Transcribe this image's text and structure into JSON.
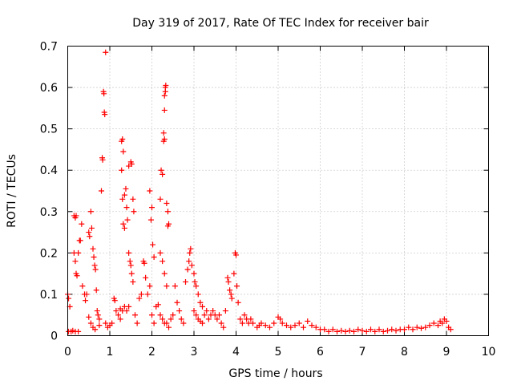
{
  "chart_data": {
    "type": "scatter",
    "title": "Day 319 of 2017, Rate Of TEC Index for receiver bair",
    "xlabel": "GPS time / hours",
    "ylabel": "ROTI / TECUs",
    "xlim": [
      0,
      10
    ],
    "ylim": [
      0,
      0.7
    ],
    "x_ticks": [
      "0",
      "1",
      "2",
      "3",
      "4",
      "5",
      "6",
      "7",
      "8",
      "9",
      "10"
    ],
    "y_ticks": [
      "0",
      "0.1",
      "0.2",
      "0.3",
      "0.4",
      "0.5",
      "0.6",
      "0.7"
    ],
    "grid": true,
    "marker": "+",
    "color": "#ff0000",
    "series": [
      {
        "points": [
          [
            0.0,
            0.1
          ],
          [
            0.02,
            0.09
          ],
          [
            0.05,
            0.07
          ],
          [
            0.02,
            0.01
          ],
          [
            0.08,
            0.01
          ],
          [
            0.12,
            0.012
          ],
          [
            0.18,
            0.01
          ],
          [
            0.25,
            0.01
          ],
          [
            0.15,
            0.29
          ],
          [
            0.18,
            0.285
          ],
          [
            0.2,
            0.29
          ],
          [
            0.15,
            0.2
          ],
          [
            0.18,
            0.18
          ],
          [
            0.2,
            0.15
          ],
          [
            0.22,
            0.145
          ],
          [
            0.25,
            0.2
          ],
          [
            0.28,
            0.23
          ],
          [
            0.3,
            0.23
          ],
          [
            0.33,
            0.27
          ],
          [
            0.35,
            0.12
          ],
          [
            0.4,
            0.1
          ],
          [
            0.45,
            0.1
          ],
          [
            0.42,
            0.085
          ],
          [
            0.5,
            0.25
          ],
          [
            0.52,
            0.24
          ],
          [
            0.55,
            0.3
          ],
          [
            0.57,
            0.26
          ],
          [
            0.6,
            0.21
          ],
          [
            0.62,
            0.19
          ],
          [
            0.64,
            0.17
          ],
          [
            0.66,
            0.16
          ],
          [
            0.68,
            0.11
          ],
          [
            0.7,
            0.06
          ],
          [
            0.72,
            0.05
          ],
          [
            0.75,
            0.04
          ],
          [
            0.5,
            0.045
          ],
          [
            0.55,
            0.03
          ],
          [
            0.6,
            0.02
          ],
          [
            0.65,
            0.015
          ],
          [
            0.75,
            0.025
          ],
          [
            0.8,
            0.35
          ],
          [
            0.82,
            0.43
          ],
          [
            0.83,
            0.425
          ],
          [
            0.85,
            0.59
          ],
          [
            0.86,
            0.585
          ],
          [
            0.87,
            0.54
          ],
          [
            0.88,
            0.535
          ],
          [
            0.9,
            0.685
          ],
          [
            0.9,
            0.03
          ],
          [
            0.95,
            0.02
          ],
          [
            1.0,
            0.025
          ],
          [
            1.05,
            0.03
          ],
          [
            1.1,
            0.09
          ],
          [
            1.12,
            0.085
          ],
          [
            1.15,
            0.06
          ],
          [
            1.2,
            0.05
          ],
          [
            1.25,
            0.04
          ],
          [
            1.28,
            0.47
          ],
          [
            1.3,
            0.475
          ],
          [
            1.32,
            0.445
          ],
          [
            1.28,
            0.4
          ],
          [
            1.3,
            0.33
          ],
          [
            1.32,
            0.27
          ],
          [
            1.35,
            0.34
          ],
          [
            1.38,
            0.355
          ],
          [
            1.4,
            0.31
          ],
          [
            1.42,
            0.28
          ],
          [
            1.35,
            0.26
          ],
          [
            1.45,
            0.41
          ],
          [
            1.5,
            0.42
          ],
          [
            1.52,
            0.415
          ],
          [
            1.55,
            0.33
          ],
          [
            1.57,
            0.3
          ],
          [
            1.45,
            0.2
          ],
          [
            1.48,
            0.18
          ],
          [
            1.5,
            0.17
          ],
          [
            1.52,
            0.15
          ],
          [
            1.55,
            0.13
          ],
          [
            1.45,
            0.07
          ],
          [
            1.4,
            0.06
          ],
          [
            1.35,
            0.07
          ],
          [
            1.3,
            0.06
          ],
          [
            1.25,
            0.065
          ],
          [
            1.6,
            0.05
          ],
          [
            1.65,
            0.03
          ],
          [
            1.7,
            0.09
          ],
          [
            1.75,
            0.1
          ],
          [
            1.8,
            0.18
          ],
          [
            1.82,
            0.175
          ],
          [
            1.85,
            0.14
          ],
          [
            1.9,
            0.1
          ],
          [
            1.95,
            0.35
          ],
          [
            1.98,
            0.28
          ],
          [
            2.0,
            0.31
          ],
          [
            2.02,
            0.22
          ],
          [
            2.05,
            0.19
          ],
          [
            1.95,
            0.12
          ],
          [
            2.0,
            0.05
          ],
          [
            2.05,
            0.03
          ],
          [
            2.1,
            0.07
          ],
          [
            2.15,
            0.075
          ],
          [
            2.2,
            0.33
          ],
          [
            2.22,
            0.4
          ],
          [
            2.25,
            0.39
          ],
          [
            2.28,
            0.47
          ],
          [
            2.28,
            0.49
          ],
          [
            2.3,
            0.475
          ],
          [
            2.3,
            0.545
          ],
          [
            2.3,
            0.58
          ],
          [
            2.32,
            0.59
          ],
          [
            2.32,
            0.6
          ],
          [
            2.33,
            0.605
          ],
          [
            2.35,
            0.32
          ],
          [
            2.38,
            0.3
          ],
          [
            2.38,
            0.265
          ],
          [
            2.4,
            0.27
          ],
          [
            2.2,
            0.2
          ],
          [
            2.25,
            0.18
          ],
          [
            2.3,
            0.15
          ],
          [
            2.35,
            0.12
          ],
          [
            2.2,
            0.05
          ],
          [
            2.25,
            0.04
          ],
          [
            2.3,
            0.03
          ],
          [
            2.35,
            0.03
          ],
          [
            2.4,
            0.02
          ],
          [
            2.45,
            0.04
          ],
          [
            2.5,
            0.05
          ],
          [
            2.55,
            0.12
          ],
          [
            2.6,
            0.08
          ],
          [
            2.65,
            0.06
          ],
          [
            2.7,
            0.04
          ],
          [
            2.75,
            0.03
          ],
          [
            2.8,
            0.13
          ],
          [
            2.85,
            0.16
          ],
          [
            2.88,
            0.18
          ],
          [
            2.9,
            0.2
          ],
          [
            2.92,
            0.21
          ],
          [
            2.95,
            0.17
          ],
          [
            3.0,
            0.15
          ],
          [
            3.02,
            0.13
          ],
          [
            3.05,
            0.12
          ],
          [
            3.1,
            0.1
          ],
          [
            3.15,
            0.08
          ],
          [
            3.2,
            0.07
          ],
          [
            3.0,
            0.06
          ],
          [
            3.05,
            0.05
          ],
          [
            3.1,
            0.04
          ],
          [
            3.15,
            0.035
          ],
          [
            3.2,
            0.03
          ],
          [
            3.25,
            0.05
          ],
          [
            3.3,
            0.06
          ],
          [
            3.35,
            0.04
          ],
          [
            3.4,
            0.05
          ],
          [
            3.45,
            0.06
          ],
          [
            3.5,
            0.05
          ],
          [
            3.55,
            0.04
          ],
          [
            3.6,
            0.05
          ],
          [
            3.65,
            0.03
          ],
          [
            3.7,
            0.02
          ],
          [
            3.75,
            0.06
          ],
          [
            3.8,
            0.14
          ],
          [
            3.82,
            0.13
          ],
          [
            3.85,
            0.11
          ],
          [
            3.88,
            0.1
          ],
          [
            3.9,
            0.09
          ],
          [
            3.95,
            0.15
          ],
          [
            3.98,
            0.2
          ],
          [
            4.0,
            0.195
          ],
          [
            4.02,
            0.12
          ],
          [
            4.05,
            0.08
          ],
          [
            4.1,
            0.04
          ],
          [
            4.15,
            0.03
          ],
          [
            4.2,
            0.05
          ],
          [
            4.25,
            0.04
          ],
          [
            4.3,
            0.03
          ],
          [
            4.35,
            0.04
          ],
          [
            4.4,
            0.03
          ],
          [
            4.5,
            0.02
          ],
          [
            4.55,
            0.025
          ],
          [
            4.6,
            0.03
          ],
          [
            4.7,
            0.025
          ],
          [
            4.8,
            0.02
          ],
          [
            4.9,
            0.03
          ],
          [
            5.0,
            0.045
          ],
          [
            5.05,
            0.04
          ],
          [
            5.1,
            0.03
          ],
          [
            5.2,
            0.025
          ],
          [
            5.3,
            0.02
          ],
          [
            5.4,
            0.025
          ],
          [
            5.5,
            0.03
          ],
          [
            5.6,
            0.02
          ],
          [
            5.7,
            0.035
          ],
          [
            5.8,
            0.025
          ],
          [
            5.9,
            0.02
          ],
          [
            6.0,
            0.015
          ],
          [
            6.1,
            0.015
          ],
          [
            6.2,
            0.01
          ],
          [
            6.3,
            0.015
          ],
          [
            6.4,
            0.01
          ],
          [
            6.5,
            0.012
          ],
          [
            6.6,
            0.01
          ],
          [
            6.7,
            0.012
          ],
          [
            6.8,
            0.01
          ],
          [
            6.9,
            0.015
          ],
          [
            7.0,
            0.012
          ],
          [
            7.1,
            0.01
          ],
          [
            7.2,
            0.015
          ],
          [
            7.3,
            0.01
          ],
          [
            7.4,
            0.015
          ],
          [
            7.5,
            0.01
          ],
          [
            7.6,
            0.012
          ],
          [
            7.7,
            0.015
          ],
          [
            7.8,
            0.012
          ],
          [
            7.9,
            0.015
          ],
          [
            8.0,
            0.015
          ],
          [
            8.1,
            0.02
          ],
          [
            8.2,
            0.015
          ],
          [
            8.3,
            0.02
          ],
          [
            8.4,
            0.018
          ],
          [
            8.5,
            0.02
          ],
          [
            8.6,
            0.025
          ],
          [
            8.7,
            0.03
          ],
          [
            8.8,
            0.025
          ],
          [
            8.85,
            0.035
          ],
          [
            8.9,
            0.03
          ],
          [
            8.95,
            0.04
          ],
          [
            9.0,
            0.035
          ],
          [
            9.05,
            0.02
          ],
          [
            9.1,
            0.015
          ]
        ]
      }
    ]
  }
}
